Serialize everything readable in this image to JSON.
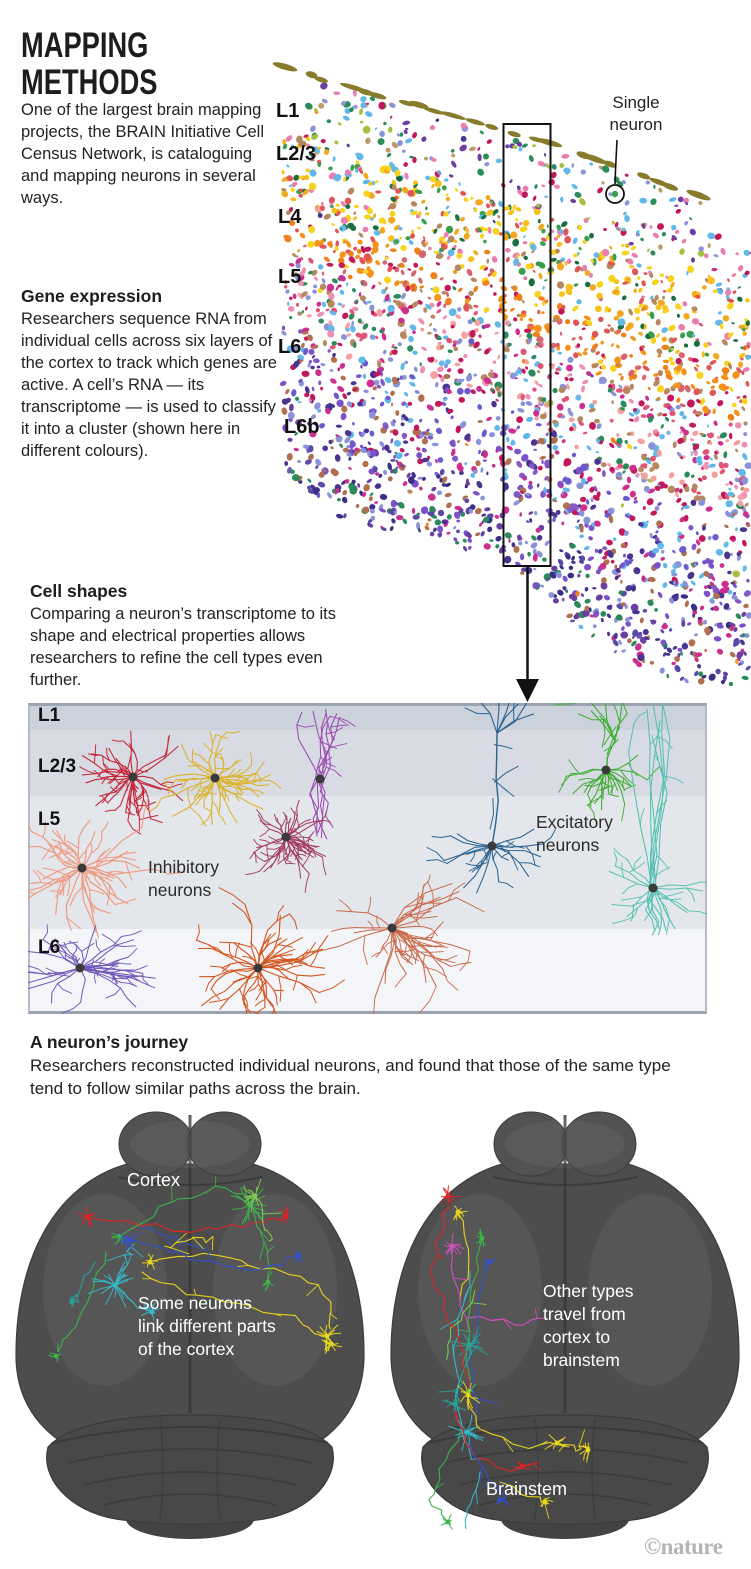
{
  "header": {
    "title": "MAPPING\nMETHODS",
    "intro": "One of the largest brain mapping projects, the BRAIN Initiative Cell Census Network, is cataloguing and mapping neurons in several ways."
  },
  "gene_expression": {
    "heading": "Gene expression",
    "body": "Researchers sequence RNA from individual cells across six layers of the cortex to track which genes are active. A cell’s RNA — its transcriptome — is used to classify it into a cluster (shown here in different colours)."
  },
  "cell_shapes": {
    "heading": "Cell shapes",
    "body": "Comparing a neuron’s transcriptome to its shape and electrical properties allows researchers to refine the cell types even further."
  },
  "neuron_journey": {
    "heading": "A neuron’s journey",
    "body": "Researchers reconstructed individual neurons, and found that those of the same type tend to follow similar paths across the brain."
  },
  "scatter": {
    "annotation": "Single\nneuron",
    "surface_color": "#867c2c",
    "single_neuron_color": "#3a9e4e",
    "layers": [
      {
        "label": "L1",
        "colors": [
          "#e87fb0",
          "#a8c040",
          "#6a3fa0",
          "#62b8e8",
          "#2a8c5a",
          "#c2185b",
          "#8a93d8",
          "#c09a6a"
        ]
      },
      {
        "label": "L2/3",
        "colors": [
          "#f8d31c",
          "#f8d31c",
          "#f6c11d",
          "#f2a81e",
          "#e87fb0",
          "#3a9e4e",
          "#62b8e8",
          "#b58860",
          "#1a6e40",
          "#e05557"
        ]
      },
      {
        "label": "L4",
        "colors": [
          "#f59218",
          "#f59218",
          "#f0801a",
          "#e05557",
          "#d6656f",
          "#f8d31c",
          "#c2185b",
          "#b58860"
        ]
      },
      {
        "label": "L5",
        "colors": [
          "#ee8fb3",
          "#e05577",
          "#c2185b",
          "#62b8e8",
          "#f4a0a0",
          "#cc2f8e",
          "#8a93d8",
          "#b58860",
          "#2a8c5a"
        ]
      },
      {
        "label": "L6",
        "colors": [
          "#8a93d8",
          "#6a5acd",
          "#cc2f8e",
          "#c2185b",
          "#62b8e8",
          "#7b52c9",
          "#4a3490",
          "#b07050",
          "#8458c8"
        ]
      },
      {
        "label": "L6b",
        "colors": [
          "#4a3490",
          "#5a4aa8",
          "#6a3fa0",
          "#8a93d8",
          "#3a2e86",
          "#cc2f8e",
          "#7b52c9",
          "#2a8c5a",
          "#b07050"
        ]
      }
    ]
  },
  "morphology": {
    "layer_labels": [
      "L1",
      "L2/3",
      "L5",
      "L6"
    ],
    "inhibitory_label": "Inhibitory\nneurons",
    "excitatory_label": "Excitatory\nneurons",
    "band_colors": [
      "#ccd2db",
      "#d8dbe3",
      "#e3e6eb",
      "#f3f5f8"
    ],
    "neurons": [
      {
        "name": "red-basket",
        "color": "#c5293a"
      },
      {
        "name": "gold-chandelier",
        "color": "#dcb32c"
      },
      {
        "name": "violet-martinotti",
        "color": "#9a4bb0"
      },
      {
        "name": "magenta-basket",
        "color": "#a23a60"
      },
      {
        "name": "salmon-basket",
        "color": "#f09a82"
      },
      {
        "name": "purple-l6",
        "color": "#7156b8"
      },
      {
        "name": "orange-l6",
        "color": "#d4541e"
      },
      {
        "name": "coral-l6",
        "color": "#c96a4a"
      },
      {
        "name": "blue-pyramidal",
        "color": "#2d6390"
      },
      {
        "name": "green-pyramidal",
        "color": "#3fae33"
      },
      {
        "name": "teal-pyramidal",
        "color": "#55c1b2"
      }
    ]
  },
  "journey": {
    "cortex_label": "Cortex",
    "left_caption": "Some neurons\nlink different parts\nof the cortex",
    "right_caption": "Other types\ntravel from\ncortex to\nbrainstem",
    "brainstem_label": "Brainstem",
    "brain_color": "#4d4d4d",
    "trace_colors": [
      "#e8d61e",
      "#3cb449",
      "#35b8c8",
      "#3050d0",
      "#e02424",
      "#7ec850",
      "#2aa198",
      "#d050c0"
    ]
  },
  "credit": "©nature"
}
